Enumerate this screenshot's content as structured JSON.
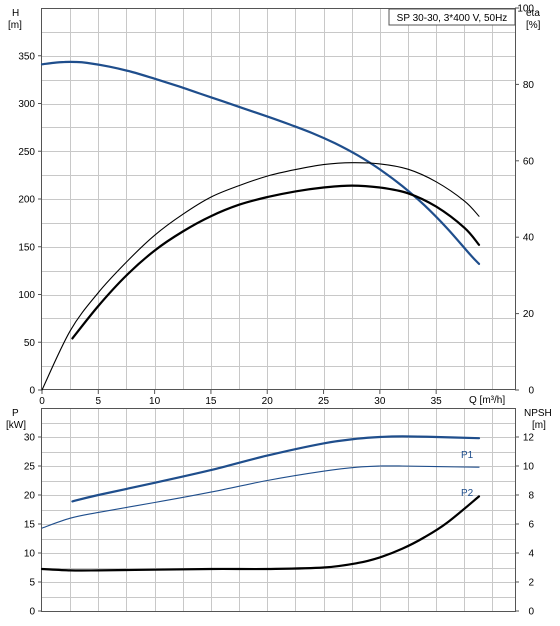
{
  "chart_data": [
    {
      "type": "line",
      "title": "SP 30-30, 3*400 V, 50Hz",
      "xlabel": "Q [m³/h]",
      "xlim": [
        0,
        42
      ],
      "x_ticks": [
        "0",
        "5",
        "10",
        "15",
        "20",
        "25",
        "30",
        "35"
      ],
      "y_left": {
        "label_line1": "H",
        "label_line2": "[m]",
        "lim": [
          0,
          400
        ],
        "ticks": [
          "0",
          "50",
          "100",
          "150",
          "200",
          "250",
          "300",
          "350"
        ]
      },
      "y_right": {
        "label_line1": "eta",
        "label_line2": "[%]",
        "lim": [
          0,
          100
        ],
        "ticks": [
          "0",
          "20",
          "40",
          "60",
          "80",
          "100"
        ]
      },
      "grid": true,
      "series": [
        {
          "axis": "left",
          "color": "#1f4e8c",
          "x": [
            0,
            1,
            2,
            3,
            4,
            6,
            8,
            10,
            12,
            14,
            16,
            18,
            20,
            22,
            24,
            26,
            28,
            30,
            32,
            34,
            36,
            38,
            38.8
          ],
          "values": [
            341,
            342.5,
            343.5,
            343.5,
            342.5,
            338.5,
            333,
            326,
            318.5,
            310.5,
            302.5,
            294.5,
            286.5,
            278,
            269,
            258.5,
            246,
            231,
            213.5,
            193,
            169,
            142,
            132
          ]
        },
        {
          "axis": "right",
          "color": "#000000",
          "x": [
            2.7,
            5,
            7.5,
            10,
            12.5,
            15,
            17.5,
            20,
            22.5,
            25,
            27.5,
            30,
            32.5,
            35,
            37.5,
            38.8
          ],
          "values": [
            13.5,
            22,
            30,
            36.5,
            41.5,
            45.5,
            48.5,
            50.5,
            52,
            53,
            53.5,
            53,
            51.5,
            48,
            42.5,
            38
          ]
        },
        {
          "axis": "right",
          "color": "#000000",
          "x": [
            0,
            2.5,
            5,
            7.5,
            10,
            12.5,
            15,
            17.5,
            20,
            22.5,
            25,
            27.5,
            30,
            32.5,
            35,
            37.5,
            38.8
          ],
          "values": [
            0,
            15.5,
            25.5,
            33.5,
            40.5,
            46,
            50.5,
            53.5,
            56,
            57.7,
            59,
            59.5,
            59.2,
            57.8,
            54.5,
            49.5,
            45.5
          ]
        }
      ]
    },
    {
      "type": "line",
      "xlim": [
        0,
        42
      ],
      "y_left": {
        "label_line1": "P",
        "label_line2": "[kW]",
        "lim": [
          0,
          35
        ],
        "ticks": [
          "0",
          "5",
          "10",
          "15",
          "20",
          "25",
          "30"
        ]
      },
      "y_right": {
        "label_line1": "NPSH",
        "label_line2": "[m]",
        "lim": [
          0,
          14
        ],
        "ticks": [
          "0",
          "2",
          "4",
          "6",
          "8",
          "10",
          "12"
        ]
      },
      "grid": true,
      "series": [
        {
          "name": "P1",
          "axis": "left",
          "color": "#1f4e8c",
          "x": [
            2.7,
            5,
            10,
            15,
            20,
            25,
            28,
            30,
            32,
            35,
            38.8
          ],
          "values": [
            18.9,
            20,
            22.1,
            24.3,
            26.8,
            28.9,
            29.7,
            30,
            30.1,
            30,
            29.8
          ]
        },
        {
          "name": "P2",
          "axis": "left",
          "color": "#1f4e8c",
          "x": [
            0,
            2.5,
            5,
            10,
            15,
            20,
            25,
            28,
            30,
            32,
            35,
            38.8
          ],
          "values": [
            14.3,
            16,
            17,
            18.7,
            20.5,
            22.5,
            24.1,
            24.8,
            25,
            25,
            24.9,
            24.8
          ]
        },
        {
          "axis": "right",
          "color": "#000000",
          "x": [
            0,
            2.5,
            5,
            10,
            15,
            20,
            25,
            28,
            30,
            32,
            34,
            36,
            38.8
          ],
          "values": [
            2.9,
            2.8,
            2.8,
            2.85,
            2.9,
            2.9,
            3.0,
            3.3,
            3.7,
            4.3,
            5.1,
            6.1,
            7.9
          ]
        }
      ]
    }
  ]
}
